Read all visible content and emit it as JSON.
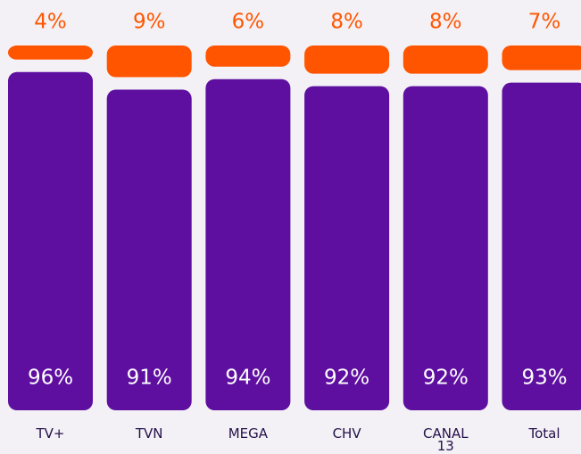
{
  "chart_data": {
    "type": "stacked_bar",
    "categories": [
      "TV+",
      "TVN",
      "MEGA",
      "CHV",
      "CANAL 13",
      "Total"
    ],
    "series": [
      {
        "color": "#5e0fa0",
        "values": [
          96,
          91,
          94,
          92,
          92,
          93
        ],
        "value_labels": [
          "96%",
          "91%",
          "94%",
          "92%",
          "92%",
          "93%"
        ]
      },
      {
        "color": "#ff5500",
        "values": [
          4,
          9,
          6,
          8,
          8,
          7
        ],
        "value_labels": [
          "4%",
          "9%",
          "6%",
          "8%",
          "8%",
          "7%"
        ]
      }
    ]
  }
}
